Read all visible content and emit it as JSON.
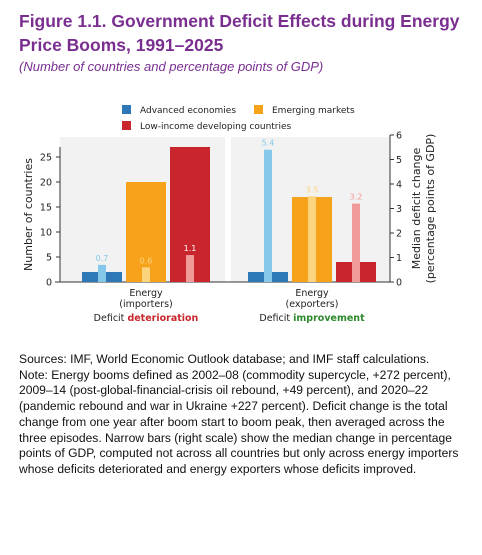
{
  "title": "Figure 1.1. Government Deficit Effects during Energy Price Booms, 1991–2025",
  "subtitle": "(Number of countries and percentage points of GDP)",
  "colors": {
    "title": "#7a2e90",
    "advanced": "#2e78b8",
    "advanced_light": "#86c8ea",
    "emerging": "#f7a21b",
    "emerging_light": "#fcd47e",
    "lidc": "#c8262c",
    "lidc_light": "#f19a9a",
    "deterioration_text": "#c8262c",
    "improvement_text": "#2c8a2c"
  },
  "chart_data": {
    "type": "bar",
    "categories": [
      "Energy (importers)",
      "Energy (exporters)"
    ],
    "category_label_lines": [
      [
        "Energy",
        "(importers)"
      ],
      [
        "Energy",
        "(exporters)"
      ]
    ],
    "category_captions": [
      {
        "prefix": "Deficit ",
        "emphasis": "deterioration"
      },
      {
        "prefix": "Deficit ",
        "emphasis": "improvement"
      }
    ],
    "series": [
      {
        "name": "Advanced economies",
        "color_key": "advanced",
        "values": [
          2,
          2
        ]
      },
      {
        "name": "Emerging markets",
        "color_key": "emerging",
        "values": [
          20,
          17
        ]
      },
      {
        "name": "Low-income developing countries",
        "color_key": "lidc",
        "values": [
          27,
          4
        ]
      }
    ],
    "median_series": [
      {
        "series": "Advanced economies",
        "color_key": "advanced_light",
        "values": [
          0.7,
          5.4
        ],
        "labels": [
          "0.7",
          "5.4"
        ]
      },
      {
        "series": "Emerging markets",
        "color_key": "emerging_light",
        "values": [
          0.6,
          3.5
        ],
        "labels": [
          "0.6",
          "3.5"
        ]
      },
      {
        "series": "Low-income developing countries",
        "color_key": "lidc_light",
        "values": [
          1.1,
          3.2
        ],
        "labels": [
          "1.1",
          "3.2"
        ]
      }
    ],
    "ylabel": "Number of countries",
    "ylim": [
      0,
      27
    ],
    "yticks": [
      0,
      5,
      10,
      15,
      20,
      25
    ],
    "y2label_lines": [
      "Median deficit change",
      "(percentage points of GDP)"
    ],
    "y2lim": [
      0,
      6
    ],
    "y2ticks": [
      0,
      1,
      2,
      3,
      4,
      5,
      6
    ],
    "legend_position": "top",
    "grid": false
  },
  "notes": {
    "sources": "Sources: IMF, World Economic Outlook database; and IMF staff calculations.",
    "note": "Note: Energy booms defined as 2002–08 (commodity supercycle, +272 percent), 2009–14 (post-global-financial-crisis oil rebound, +49 percent), and 2020–22 (pandemic rebound and war in Ukraine +227 percent). Deficit change is the total change from one year after boom start to boom peak, then averaged across the three episodes. Narrow bars (right scale) show the median change in percentage points of GDP, computed not across all countries but only across energy importers whose deficits deteriorated and energy exporters whose deficits improved."
  }
}
